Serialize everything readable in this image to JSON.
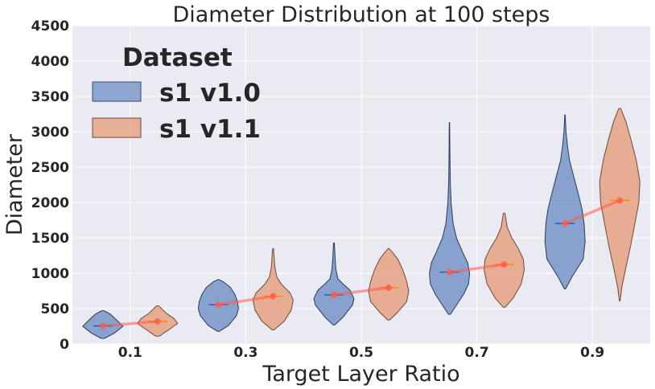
{
  "chart_data": {
    "type": "violin",
    "title": "Diameter Distribution at 100 steps",
    "xlabel": "Target Layer Ratio",
    "ylabel": "Diameter",
    "ylim": [
      0,
      4500
    ],
    "yticks": [
      0,
      500,
      1000,
      1500,
      2000,
      2500,
      3000,
      3500,
      4000,
      4500
    ],
    "categories": [
      "0.1",
      "0.3",
      "0.5",
      "0.7",
      "0.9"
    ],
    "grid": true,
    "legend": {
      "title": "Dataset",
      "position": "top-left"
    },
    "colors": {
      "background": "#eaeaf2",
      "grid": "#ffffff",
      "trend": "#ff5a4a"
    },
    "series": [
      {
        "name": "s1 v1.0",
        "color": "#5b7fbe",
        "edge": "#2b3a55",
        "median_color": "#2a5fa8",
        "medians": [
          255,
          555,
          695,
          1015,
          1705
        ],
        "violins": [
          {
            "profile": [
              [
                80,
                0.08
              ],
              [
                150,
                0.55
              ],
              [
                250,
                1.0
              ],
              [
                330,
                0.72
              ],
              [
                420,
                0.38
              ],
              [
                470,
                0.05
              ]
            ]
          },
          {
            "profile": [
              [
                180,
                0.05
              ],
              [
                260,
                0.5
              ],
              [
                400,
                0.9
              ],
              [
                500,
                1.0
              ],
              [
                600,
                0.95
              ],
              [
                700,
                0.82
              ],
              [
                800,
                0.6
              ],
              [
                880,
                0.25
              ],
              [
                910,
                0.03
              ]
            ]
          },
          {
            "profile": [
              [
                270,
                0.05
              ],
              [
                380,
                0.45
              ],
              [
                550,
                0.92
              ],
              [
                640,
                1.0
              ],
              [
                760,
                0.8
              ],
              [
                850,
                0.45
              ],
              [
                920,
                0.2
              ],
              [
                1050,
                0.1
              ],
              [
                1200,
                0.06
              ],
              [
                1430,
                0.02
              ]
            ]
          },
          {
            "profile": [
              [
                420,
                0.05
              ],
              [
                550,
                0.35
              ],
              [
                700,
                0.7
              ],
              [
                850,
                0.95
              ],
              [
                1000,
                1.0
              ],
              [
                1150,
                0.9
              ],
              [
                1300,
                0.65
              ],
              [
                1500,
                0.35
              ],
              [
                1700,
                0.18
              ],
              [
                2000,
                0.08
              ],
              [
                2300,
                0.04
              ],
              [
                2700,
                0.02
              ],
              [
                3130,
                0.01
              ]
            ]
          },
          {
            "profile": [
              [
                780,
                0.03
              ],
              [
                950,
                0.35
              ],
              [
                1200,
                0.9
              ],
              [
                1450,
                1.0
              ],
              [
                1700,
                0.95
              ],
              [
                1900,
                0.85
              ],
              [
                2100,
                0.68
              ],
              [
                2350,
                0.45
              ],
              [
                2600,
                0.22
              ],
              [
                2800,
                0.12
              ],
              [
                3000,
                0.05
              ],
              [
                3240,
                0.01
              ]
            ]
          }
        ]
      },
      {
        "name": "s1 v1.1",
        "color": "#e6a07e",
        "edge": "#6b4a3a",
        "median_color": "#ff8c00",
        "medians": [
          320,
          675,
          795,
          1125,
          2030
        ],
        "violins": [
          {
            "profile": [
              [
                110,
                0.08
              ],
              [
                200,
                0.55
              ],
              [
                290,
                1.0
              ],
              [
                360,
                0.82
              ],
              [
                430,
                0.45
              ],
              [
                540,
                0.05
              ]
            ]
          },
          {
            "profile": [
              [
                200,
                0.05
              ],
              [
                320,
                0.55
              ],
              [
                480,
                0.9
              ],
              [
                620,
                1.0
              ],
              [
                720,
                0.85
              ],
              [
                850,
                0.4
              ],
              [
                950,
                0.18
              ],
              [
                1100,
                0.08
              ],
              [
                1250,
                0.05
              ],
              [
                1350,
                0.02
              ]
            ]
          },
          {
            "profile": [
              [
                340,
                0.05
              ],
              [
                450,
                0.45
              ],
              [
                600,
                0.9
              ],
              [
                750,
                1.0
              ],
              [
                900,
                0.88
              ],
              [
                1050,
                0.7
              ],
              [
                1200,
                0.45
              ],
              [
                1300,
                0.18
              ],
              [
                1350,
                0.02
              ]
            ]
          },
          {
            "profile": [
              [
                520,
                0.05
              ],
              [
                650,
                0.45
              ],
              [
                850,
                0.85
              ],
              [
                1050,
                1.0
              ],
              [
                1200,
                0.95
              ],
              [
                1350,
                0.7
              ],
              [
                1500,
                0.38
              ],
              [
                1650,
                0.15
              ],
              [
                1850,
                0.04
              ]
            ]
          },
          {
            "profile": [
              [
                610,
                0.02
              ],
              [
                800,
                0.1
              ],
              [
                1100,
                0.32
              ],
              [
                1400,
                0.55
              ],
              [
                1700,
                0.75
              ],
              [
                2000,
                0.95
              ],
              [
                2300,
                1.0
              ],
              [
                2600,
                0.82
              ],
              [
                2900,
                0.55
              ],
              [
                3150,
                0.3
              ],
              [
                3330,
                0.05
              ]
            ]
          }
        ]
      }
    ]
  }
}
